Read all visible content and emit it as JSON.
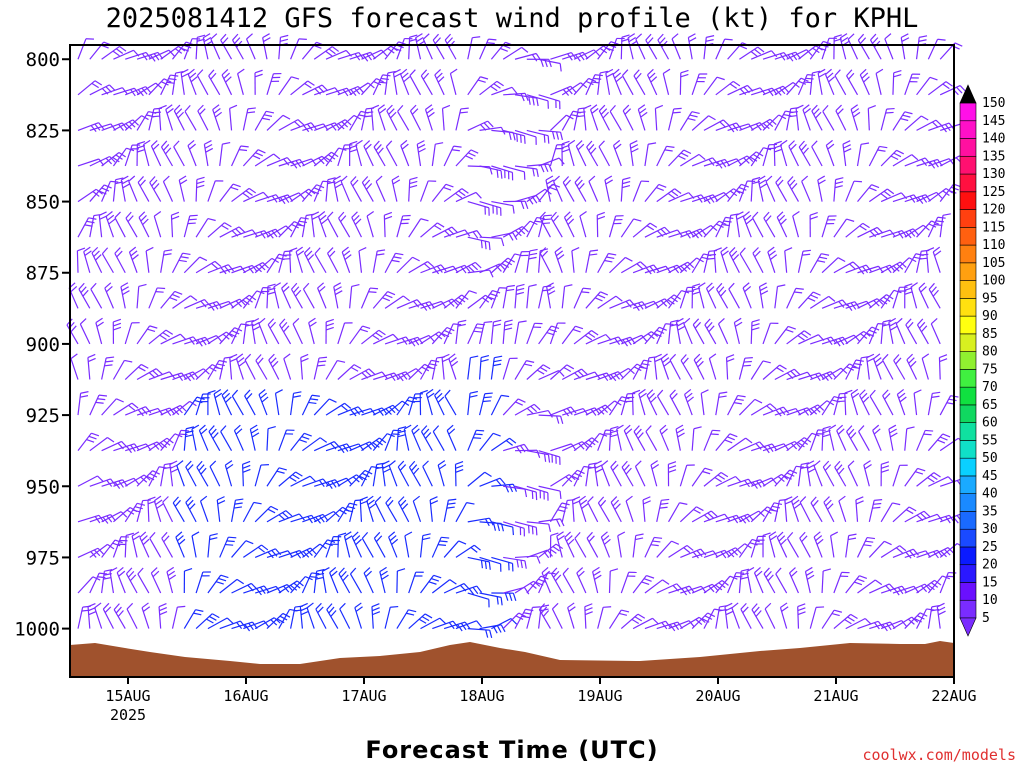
{
  "chart_data": {
    "type": "wind-barb-time-height",
    "title": "2025081412 GFS forecast wind profile (kt) for KPHL",
    "xlabel": "Forecast Time (UTC)",
    "ylabel": "",
    "credit": "coolwx.com/models",
    "x_ticks": [
      "15AUG",
      "16AUG",
      "17AUG",
      "18AUG",
      "19AUG",
      "20AUG",
      "21AUG",
      "22AUG"
    ],
    "x_year_label": "2025",
    "y_ticks": [
      800,
      825,
      850,
      875,
      900,
      925,
      950,
      975,
      1000
    ],
    "ylim": [
      1017,
      795
    ],
    "y_scale": "linear-pressure",
    "colorbar": {
      "levels": [
        5,
        10,
        15,
        20,
        25,
        30,
        35,
        40,
        45,
        50,
        55,
        60,
        65,
        70,
        75,
        80,
        85,
        90,
        95,
        100,
        105,
        110,
        115,
        120,
        125,
        130,
        135,
        140,
        145,
        150
      ],
      "colors": [
        "#7a2cff",
        "#6a10ff",
        "#2a18ff",
        "#0a1aff",
        "#1a4aff",
        "#1a6aff",
        "#1a8aff",
        "#1aaaff",
        "#0ad0ff",
        "#10e0c8",
        "#10e0a0",
        "#10d860",
        "#10e040",
        "#40f040",
        "#90f030",
        "#d8f020",
        "#ffff10",
        "#ffe010",
        "#ffc010",
        "#ffa010",
        "#ff8010",
        "#ff6010",
        "#ff4010",
        "#ff1010",
        "#ff1040",
        "#ff1070",
        "#ff10a0",
        "#ff10c8",
        "#ff10e8",
        "#e010ff"
      ]
    },
    "terrain_color": "#a0522d",
    "barb_color_light": "#7a2cff",
    "barb_color_strong": "#1a2cff"
  }
}
